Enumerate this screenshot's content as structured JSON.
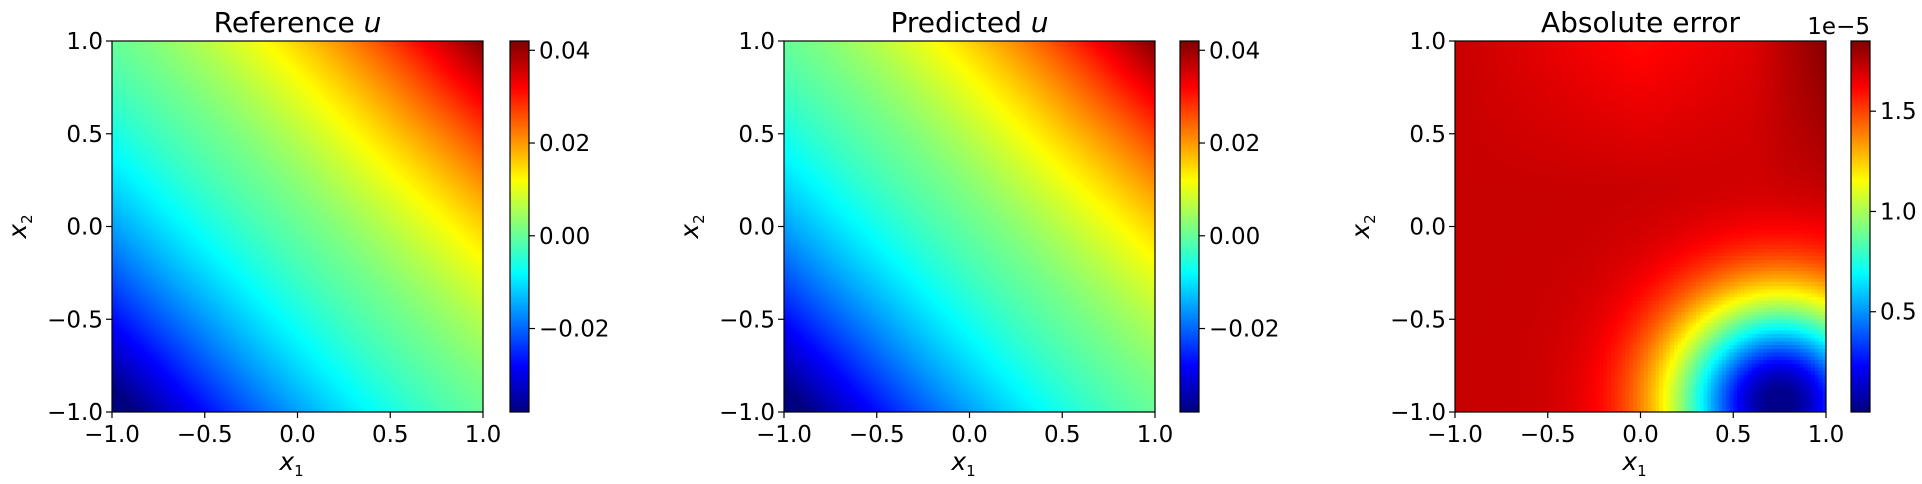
{
  "chart_data": [
    {
      "type": "heatmap",
      "title": "Reference",
      "title_var": "u",
      "xlabel": "x",
      "xlabel_sub": "1",
      "ylabel": "x",
      "ylabel_sub": "2",
      "xlim": [
        -1.0,
        1.0
      ],
      "ylim": [
        -1.0,
        1.0
      ],
      "xticks": [
        "−1.0",
        "−0.5",
        "0.0",
        "0.5",
        "1.0"
      ],
      "yticks": [
        "−1.0",
        "−0.5",
        "0.0",
        "0.5",
        "1.0"
      ],
      "colormap": "jet",
      "colorbar": {
        "range": [
          -0.038,
          0.042
        ],
        "ticks": [
          -0.02,
          0.0,
          0.02,
          0.04
        ],
        "tick_labels": [
          "−0.02",
          "0.00",
          "0.02",
          "0.04"
        ],
        "offset_label": ""
      }
    },
    {
      "type": "heatmap",
      "title": "Predicted",
      "title_var": "u",
      "xlabel": "x",
      "xlabel_sub": "1",
      "ylabel": "x",
      "ylabel_sub": "2",
      "xlim": [
        -1.0,
        1.0
      ],
      "ylim": [
        -1.0,
        1.0
      ],
      "xticks": [
        "−1.0",
        "−0.5",
        "0.0",
        "0.5",
        "1.0"
      ],
      "yticks": [
        "−1.0",
        "−0.5",
        "0.0",
        "0.5",
        "1.0"
      ],
      "colormap": "jet",
      "colorbar": {
        "range": [
          -0.038,
          0.042
        ],
        "ticks": [
          -0.02,
          0.0,
          0.02,
          0.04
        ],
        "tick_labels": [
          "−0.02",
          "0.00",
          "0.02",
          "0.04"
        ],
        "offset_label": ""
      }
    },
    {
      "type": "heatmap",
      "title": "Absolute error",
      "title_var": "",
      "xlabel": "x",
      "xlabel_sub": "1",
      "ylabel": "x",
      "ylabel_sub": "2",
      "xlim": [
        -1.0,
        1.0
      ],
      "ylim": [
        -1.0,
        1.0
      ],
      "xticks": [
        "−1.0",
        "−0.5",
        "0.0",
        "0.5",
        "1.0"
      ],
      "yticks": [
        "−1.0",
        "−0.5",
        "0.0",
        "0.5",
        "1.0"
      ],
      "colormap": "jet",
      "colorbar": {
        "range": [
          0.0,
          1.85
        ],
        "ticks": [
          0.5,
          1.0,
          1.5
        ],
        "tick_labels": [
          "0.5",
          "1.0",
          "1.5"
        ],
        "offset_label": "1e−5"
      }
    }
  ]
}
